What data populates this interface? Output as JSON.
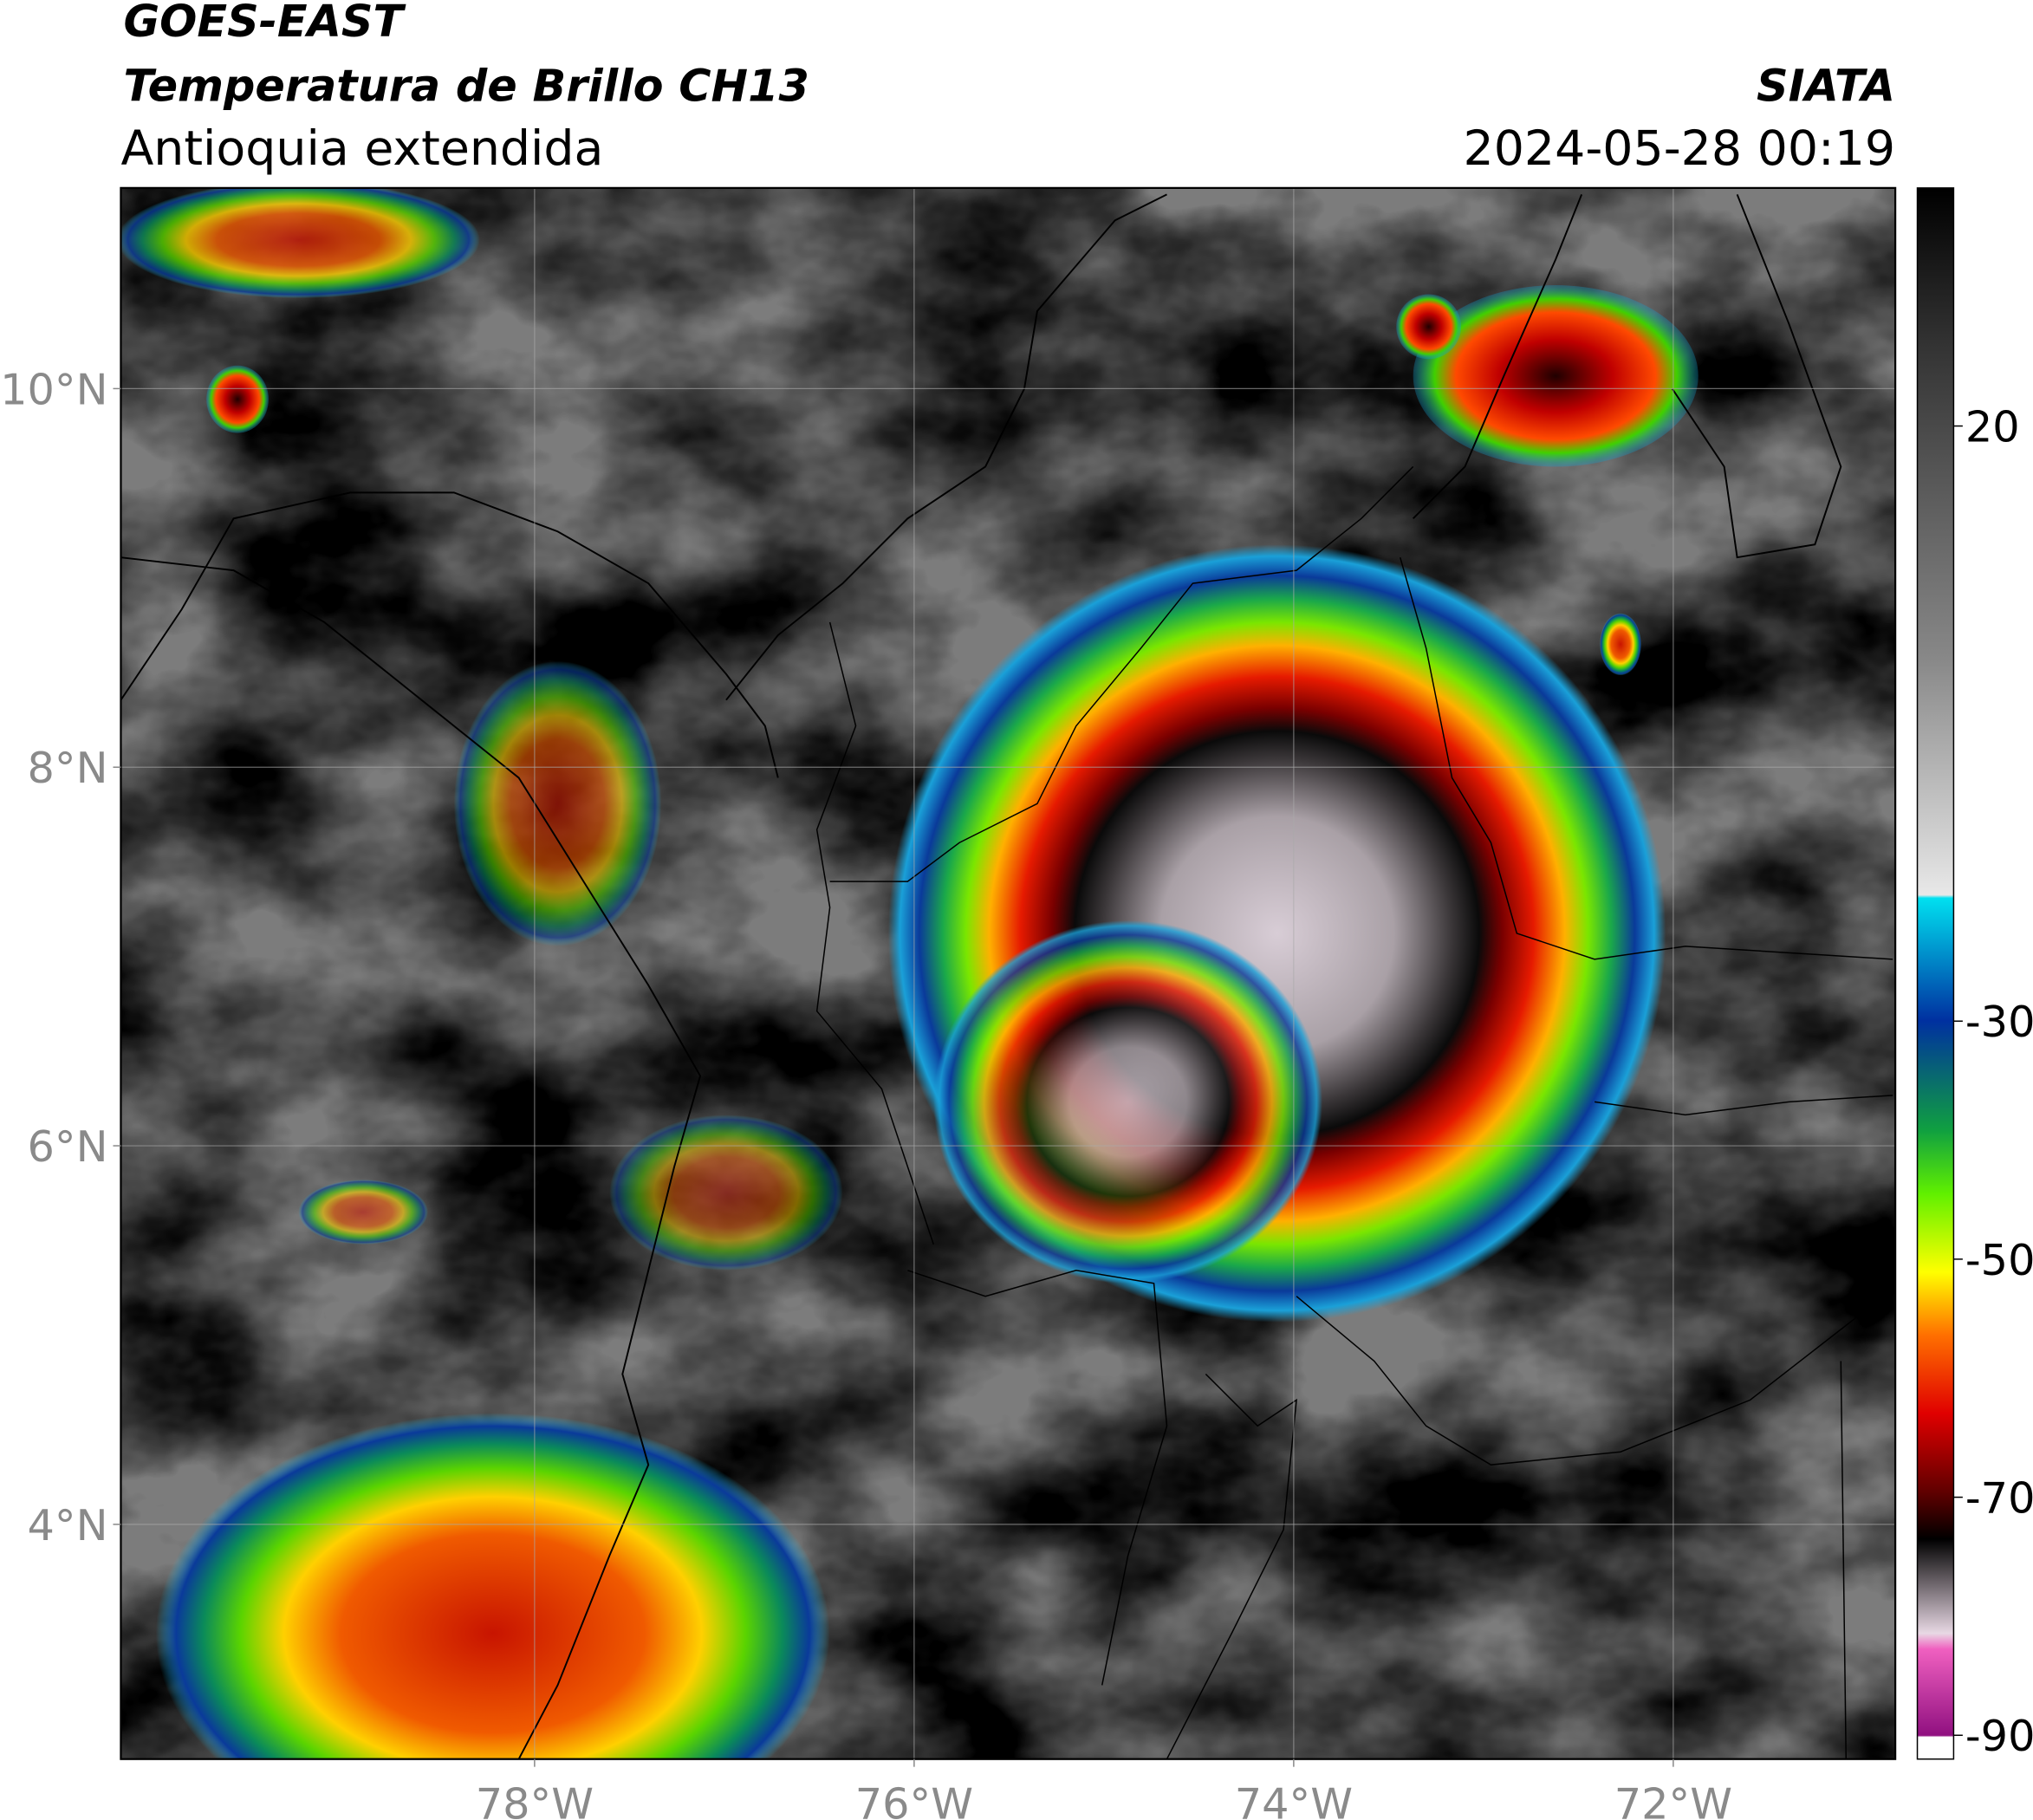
{
  "header": {
    "satellite": "GOES-EAST",
    "product": "Temperatura de Brillo CH13",
    "region": "Antioquia extendida",
    "source": "SIATA",
    "datetime": "2024-05-28 00:19"
  },
  "map": {
    "lonlim": [
      -80.18,
      -70.83
    ],
    "latlim": [
      2.76,
      11.06
    ],
    "lat_ticks": [
      {
        "value": 10,
        "label": "10°N"
      },
      {
        "value": 8,
        "label": "8°N"
      },
      {
        "value": 6,
        "label": "6°N"
      },
      {
        "value": 4,
        "label": "4°N"
      }
    ],
    "lon_ticks": [
      {
        "value": -78,
        "label": "78°W"
      },
      {
        "value": -76,
        "label": "76°W"
      },
      {
        "value": -74,
        "label": "74°W"
      },
      {
        "value": -72,
        "label": "72°W"
      }
    ]
  },
  "colorbar": {
    "range": [
      -92,
      40
    ],
    "ticks": [
      20,
      -30,
      -50,
      -70,
      -90
    ]
  }
}
